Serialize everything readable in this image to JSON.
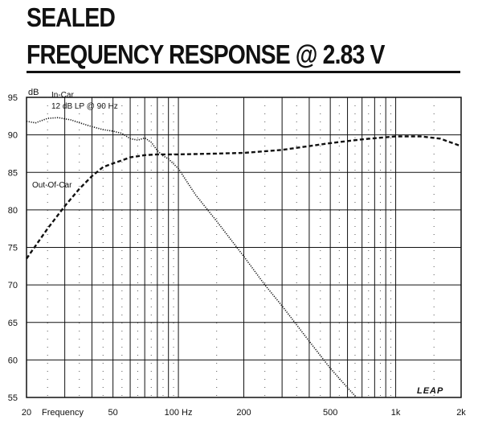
{
  "chart_data": {
    "type": "line",
    "title_line1": "SEALED",
    "title_line2": "FREQUENCY RESPONSE @ 2.83 V",
    "ylabel": "dB",
    "xlabel": "Frequency",
    "xscale": "log",
    "xlim": [
      20,
      2000
    ],
    "ylim": [
      55,
      95
    ],
    "grid": true,
    "x_ticks": [
      {
        "value": 20,
        "label": "20"
      },
      {
        "value": 50,
        "label": "50"
      },
      {
        "value": 100,
        "label": "100 Hz"
      },
      {
        "value": 200,
        "label": "200"
      },
      {
        "value": 500,
        "label": "500"
      },
      {
        "value": 1000,
        "label": "1k"
      },
      {
        "value": 2000,
        "label": "2k"
      }
    ],
    "y_ticks": [
      {
        "value": 95,
        "label": "95"
      },
      {
        "value": 90,
        "label": "90"
      },
      {
        "value": 85,
        "label": "85"
      },
      {
        "value": 80,
        "label": "80"
      },
      {
        "value": 75,
        "label": "75"
      },
      {
        "value": 70,
        "label": "70"
      },
      {
        "value": 65,
        "label": "65"
      },
      {
        "value": 60,
        "label": "60"
      },
      {
        "value": 55,
        "label": "55"
      }
    ],
    "annotations": {
      "in_car": "In-Car",
      "lowpass": "12 dB LP @ 90 Hz",
      "out_of_car": "Out-Of-Car"
    },
    "logo": "LEAP",
    "series": [
      {
        "name": "In-Car",
        "style": "dotted",
        "x": [
          20,
          22,
          25,
          28,
          32,
          36,
          40,
          45,
          50,
          55,
          60,
          65,
          70,
          75,
          80,
          85,
          90,
          100,
          120,
          150,
          200,
          250,
          300,
          400,
          500,
          600,
          660
        ],
        "y": [
          91.8,
          91.6,
          92.2,
          92.3,
          92.0,
          91.5,
          91.1,
          90.7,
          90.5,
          90.2,
          89.5,
          89.3,
          89.6,
          89.0,
          87.9,
          87.2,
          86.8,
          85.5,
          82.0,
          78.5,
          73.8,
          70.0,
          67.2,
          62.5,
          58.9,
          56.3,
          55.0
        ]
      },
      {
        "name": "Out-Of-Car",
        "style": "dashed",
        "x": [
          20,
          25,
          30,
          35,
          40,
          45,
          50,
          55,
          60,
          70,
          80,
          100,
          150,
          200,
          300,
          500,
          700,
          1000,
          1300,
          1600,
          2000
        ],
        "y": [
          73.5,
          77.5,
          80.5,
          82.8,
          84.5,
          85.7,
          86.2,
          86.6,
          87.0,
          87.3,
          87.4,
          87.4,
          87.5,
          87.6,
          88.0,
          88.9,
          89.4,
          89.8,
          89.8,
          89.5,
          88.5
        ]
      }
    ]
  }
}
